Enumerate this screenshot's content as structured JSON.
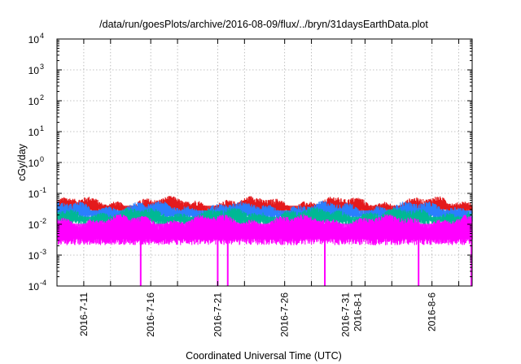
{
  "chart_data": {
    "type": "line",
    "title": "/data/run/goesPlots/archive/2016-08-09/flux/../bryn/31daysEarthData.plot",
    "xlabel": "Coordinated Universal Time (UTC)",
    "ylabel": "cGy/day",
    "yscale": "log",
    "ylim": [
      0.0001,
      10000
    ],
    "xlim": [
      "2016-07-09",
      "2016-08-09"
    ],
    "grid": true,
    "legend": "none",
    "y_ticks": [
      {
        "mantissa": "10",
        "exp": "-4"
      },
      {
        "mantissa": "10",
        "exp": "-3"
      },
      {
        "mantissa": "10",
        "exp": "-2"
      },
      {
        "mantissa": "10",
        "exp": "-1"
      },
      {
        "mantissa": "10",
        "exp": "0"
      },
      {
        "mantissa": "10",
        "exp": "1"
      },
      {
        "mantissa": "10",
        "exp": "2"
      },
      {
        "mantissa": "10",
        "exp": "3"
      },
      {
        "mantissa": "10",
        "exp": "4"
      }
    ],
    "x_ticks": [
      [
        "2016-7-11"
      ],
      [
        "2016-7-16"
      ],
      [
        "2016-7-21"
      ],
      [
        "2016-7-26"
      ],
      [
        "2016-7-31",
        "2016-8-1"
      ],
      [
        "2016-8-6"
      ]
    ],
    "x_tick_dates": [
      "2016-07-11",
      "2016-07-16",
      "2016-07-21",
      "2016-07-26",
      "2016-07-31",
      "2016-08-06"
    ],
    "x_grid_dates": [
      "2016-07-11",
      "2016-07-13",
      "2016-07-16",
      "2016-07-18",
      "2016-07-21",
      "2016-07-23",
      "2016-07-26",
      "2016-07-28",
      "2016-07-31",
      "2016-08-01",
      "2016-08-03",
      "2016-08-06",
      "2016-08-08"
    ],
    "series": [
      {
        "color": "#e41a1c",
        "typical_peak": 0.05,
        "typical_low": 0.028
      },
      {
        "color": "#2a7fff",
        "typical_peak": 0.035,
        "typical_low": 0.018
      },
      {
        "color": "#00b894",
        "typical_peak": 0.022,
        "typical_low": 0.012
      },
      {
        "color": "#ff00ff",
        "typical_peak": 0.013,
        "typical_low": 0.003
      }
    ],
    "dropouts": [
      "2016-07-15T06:00",
      "2016-07-21T00:00",
      "2016-07-21T18:00",
      "2016-07-29T00:00",
      "2016-08-05T00:00",
      "2016-08-09T12:00"
    ]
  }
}
